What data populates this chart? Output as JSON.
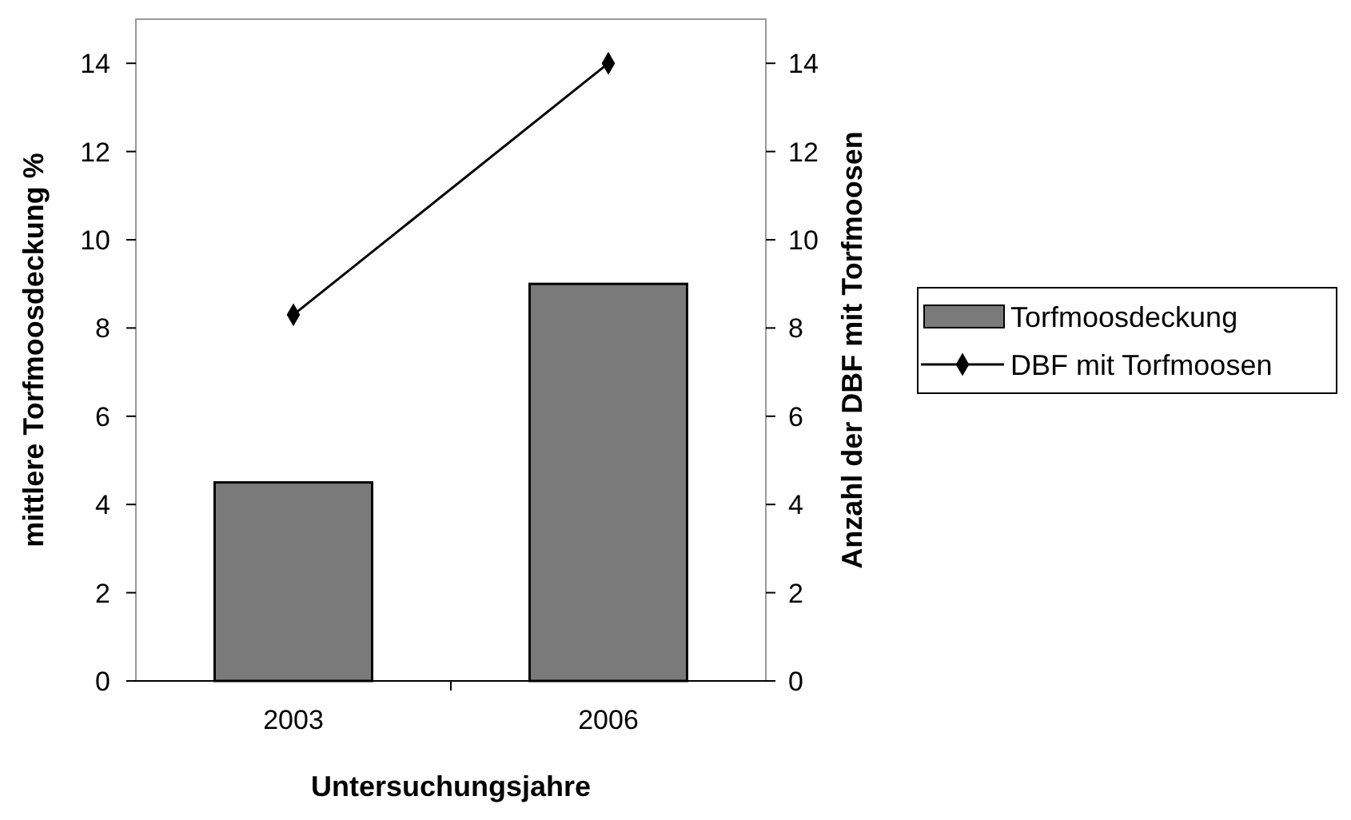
{
  "chart_data": {
    "type": "bar",
    "xlabel": "Untersuchungsjahre",
    "ylabel": "mittlere Torfmoosdeckung %",
    "y2label": "Anzahl der DBF mit Torfmoosen",
    "categories": [
      "2003",
      "2006"
    ],
    "series": [
      {
        "name": "Torfmoosdeckung",
        "color": "#7a7a7a",
        "values": [
          4.5,
          9
        ]
      },
      {
        "name": "DBF mit Torfmoosen",
        "type": "line",
        "axis": "y2",
        "color": "#000000",
        "marker": "diamond",
        "values": [
          8.3,
          14
        ]
      }
    ],
    "ylim": [
      0,
      15
    ],
    "yticks": [
      0,
      2,
      4,
      6,
      8,
      10,
      12,
      14
    ],
    "y2lim": [
      0,
      15
    ],
    "y2ticks": [
      0,
      2,
      4,
      6,
      8,
      10,
      12,
      14
    ],
    "legend": "right",
    "grid": false
  }
}
